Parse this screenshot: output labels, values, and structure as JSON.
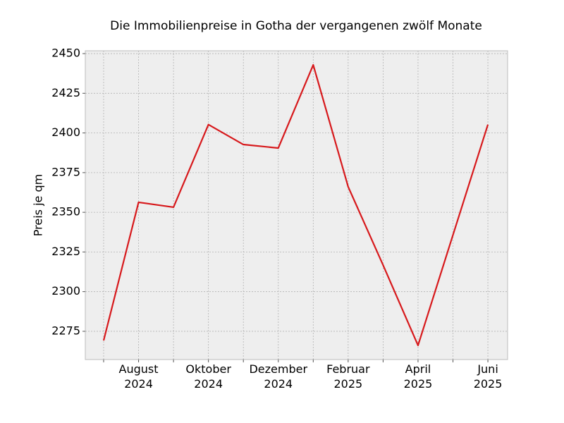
{
  "chart_data": {
    "type": "line",
    "title": "Die Immobilienpreise in Gotha der vergangenen zwölf Monate",
    "y_label": "Preis je qm",
    "categories": [
      null,
      "August\n2024",
      null,
      "Oktober\n2024",
      null,
      "Dezember\n2024",
      null,
      "Februar\n2025",
      null,
      "April\n2025",
      null,
      "Juni\n2025"
    ],
    "series": [
      {
        "name": "Preis je qm",
        "color": "#d7191c",
        "values": [
          2269.2,
          2356.3,
          2353.2,
          2405.3,
          2392.7,
          2390.5,
          2442.9,
          2366.1,
          2316.7,
          2266.1,
          2335.7,
          2405.3
        ]
      }
    ],
    "ylim": [
      2257.2,
      2451.8
    ],
    "yticks": [
      2275,
      2300,
      2325,
      2350,
      2375,
      2400,
      2425,
      2450
    ],
    "grid": true
  }
}
